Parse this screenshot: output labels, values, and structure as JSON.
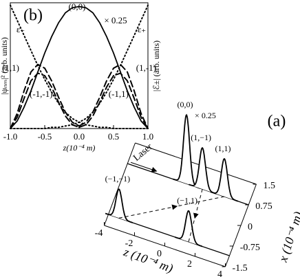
{
  "chart_data": [
    {
      "type": "line",
      "panel_label": "(b)",
      "xlabel": "z(10⁻⁴ m)",
      "ylabel": "|ψₙₘ|² (arb. units)",
      "y2label": "|ℰ±| (arb. units)",
      "scale_note": "× 0.25",
      "x": [
        -1,
        -0.9,
        -0.8,
        -0.7,
        -0.6,
        -0.5,
        -0.4,
        -0.3,
        -0.2,
        -0.1,
        0,
        0.1,
        0.2,
        0.3,
        0.4,
        0.5,
        0.6,
        0.7,
        0.8,
        0.9,
        1
      ],
      "xlim": [
        -1,
        1
      ],
      "xticks": [
        {
          "value": -1,
          "label": "-1.0"
        },
        -0.5,
        {
          "value": 0,
          "label": "0.0"
        },
        0.5,
        {
          "value": 1,
          "label": "1.0"
        }
      ],
      "ylim": [
        0,
        1
      ],
      "y2lim": [
        0,
        1
      ],
      "series": [
        {
          "name": "(0,0)",
          "color": "#000000",
          "dash": "solid",
          "values": [
            0,
            0.06,
            0.17,
            0.3,
            0.45,
            0.6,
            0.73,
            0.84,
            0.92,
            0.96,
            0.97,
            0.96,
            0.92,
            0.84,
            0.73,
            0.6,
            0.45,
            0.3,
            0.17,
            0.06,
            0
          ]
        },
        {
          "name": "(1,1)",
          "color": "#000000",
          "dash": "dashed",
          "values": [
            0,
            0.12,
            0.3,
            0.45,
            0.51,
            0.48,
            0.38,
            0.25,
            0.13,
            0.05,
            0.02,
            null,
            null,
            null,
            null,
            null,
            null,
            null,
            null,
            null,
            null
          ]
        },
        {
          "name": "(1,-1)",
          "color": "#000000",
          "dash": "dashed",
          "values": [
            null,
            null,
            null,
            null,
            null,
            null,
            null,
            null,
            null,
            null,
            0.02,
            0.05,
            0.13,
            0.25,
            0.38,
            0.48,
            0.51,
            0.45,
            0.3,
            0.12,
            0
          ]
        },
        {
          "name": "(-1,-1)",
          "color": "#000000",
          "dash": "dashed",
          "values": [
            0,
            0.09,
            0.24,
            0.38,
            0.44,
            0.42,
            0.33,
            0.21,
            0.1,
            0.03,
            0.01,
            null,
            null,
            null,
            null,
            null,
            null,
            null,
            null,
            null,
            null
          ]
        },
        {
          "name": "(-1,1)",
          "color": "#000000",
          "dash": "dashed",
          "values": [
            null,
            null,
            null,
            null,
            null,
            null,
            null,
            null,
            null,
            null,
            0.01,
            0.03,
            0.1,
            0.21,
            0.33,
            0.42,
            0.44,
            0.38,
            0.24,
            0.09,
            0
          ]
        },
        {
          "name": "ε₋",
          "color": "#000000",
          "dash": "dotted",
          "axis": "y2",
          "values": [
            0.98,
            0.86,
            0.74,
            0.62,
            0.5,
            0.39,
            0.29,
            0.2,
            0.13,
            0.08,
            0.05,
            0.03,
            0.02,
            0.01,
            0.01,
            0,
            0,
            0,
            0,
            0,
            0
          ]
        },
        {
          "name": "ε₊",
          "color": "#000000",
          "dash": "dotted",
          "axis": "y2",
          "values": [
            0,
            0,
            0,
            0,
            0,
            0,
            0.01,
            0.01,
            0.02,
            0.03,
            0.05,
            0.08,
            0.13,
            0.2,
            0.29,
            0.39,
            0.5,
            0.62,
            0.74,
            0.86,
            0.98
          ]
        }
      ]
    },
    {
      "type": "waterfall3d",
      "panel_label": "(a)",
      "zlabel": "z (10⁻⁴ m)",
      "xlabel": "x (10⁻⁴ m)",
      "laser_label": "Laser",
      "scale_note": "× 0.25",
      "zlim": [
        -4,
        4
      ],
      "zticks": [
        -4,
        -2,
        0,
        2,
        4
      ],
      "xlim": [
        -1.5,
        1.5
      ],
      "xticks": [
        1.5,
        0.75,
        0,
        -0.75,
        -1.5
      ],
      "peaks": [
        {
          "label": "(0,0)",
          "z": -0.1,
          "x": 0.75,
          "height": 1
        },
        {
          "label": "(1,−1)",
          "z": 0.95,
          "x": 0.75,
          "height": 0.6
        },
        {
          "label": "(1,1)",
          "z": 2.4,
          "x": 0.75,
          "height": 0.55
        },
        {
          "label": "(−1,−1)",
          "z": -3.3,
          "x": -1.1,
          "height": 0.42
        },
        {
          "label": "(−1,1)",
          "z": 1.3,
          "x": -1.1,
          "height": 0.45
        }
      ]
    }
  ]
}
